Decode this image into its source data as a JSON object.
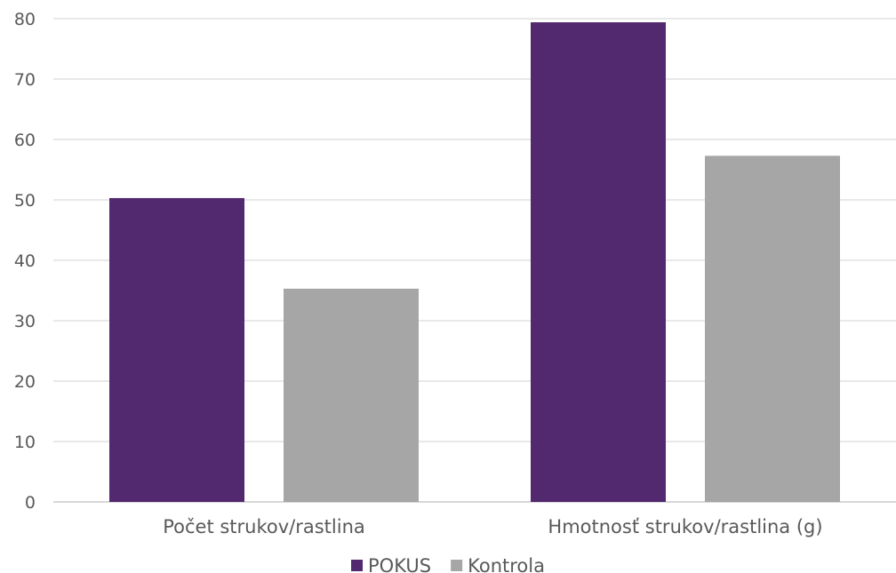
{
  "chart_data": {
    "type": "bar",
    "title": "",
    "xlabel": "",
    "ylabel": "",
    "categories": [
      "Počet strukov/rastlina",
      "Hmotnosť strukov/rastlina (g)"
    ],
    "series": [
      {
        "name": "POKUS",
        "color": "#52286e",
        "values": [
          50.3,
          79.4
        ]
      },
      {
        "name": "Kontrola",
        "color": "#a6a6a6",
        "values": [
          35.3,
          57.3
        ]
      }
    ],
    "ylim": [
      0,
      80
    ],
    "yticks": [
      0,
      10,
      20,
      30,
      40,
      50,
      60,
      70,
      80
    ],
    "grid": true,
    "legend_position": "bottom"
  }
}
